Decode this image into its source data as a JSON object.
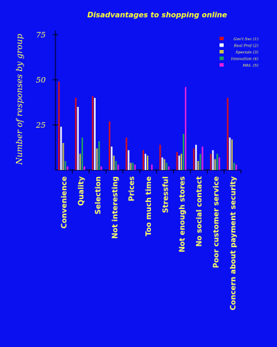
{
  "chart_data": {
    "type": "bar",
    "title": "Disadvantages to shopping online",
    "ylabel": "Number of responses by group",
    "xlabel": "",
    "ylim": [
      0,
      75
    ],
    "yticks": [
      25,
      50,
      75
    ],
    "legend_position": "top-right",
    "categories": [
      "Convenience",
      "Quality",
      "Selection",
      "Not interesting",
      "Prices",
      "Too much time",
      "Stressful",
      "Not enough stores",
      "No social contact",
      "Poor customer service",
      "Concern about payment security"
    ],
    "series": [
      {
        "name": "Gov't Svc (1)",
        "color": "#d41020",
        "values": [
          49,
          40,
          41,
          27,
          18,
          11,
          14,
          10,
          12,
          9,
          40
        ]
      },
      {
        "name": "Real Prof (2)",
        "color": "#ffffff",
        "values": [
          24,
          35,
          40,
          13,
          11,
          9,
          7,
          8,
          14,
          11,
          18
        ]
      },
      {
        "name": "Specials (3)",
        "color": "#c8c050",
        "values": [
          15,
          9,
          12,
          8,
          4,
          8,
          6,
          9,
          5,
          6,
          17
        ]
      },
      {
        "name": "Innovation (4)",
        "color": "#20a060",
        "values": [
          5,
          18,
          16,
          5,
          4,
          0,
          4,
          20,
          9,
          9,
          4
        ]
      },
      {
        "name": "Mkt. (5)",
        "color": "#e020e0",
        "values": [
          2,
          2,
          2,
          3,
          3,
          3,
          2,
          46,
          13,
          7,
          3
        ]
      }
    ]
  }
}
